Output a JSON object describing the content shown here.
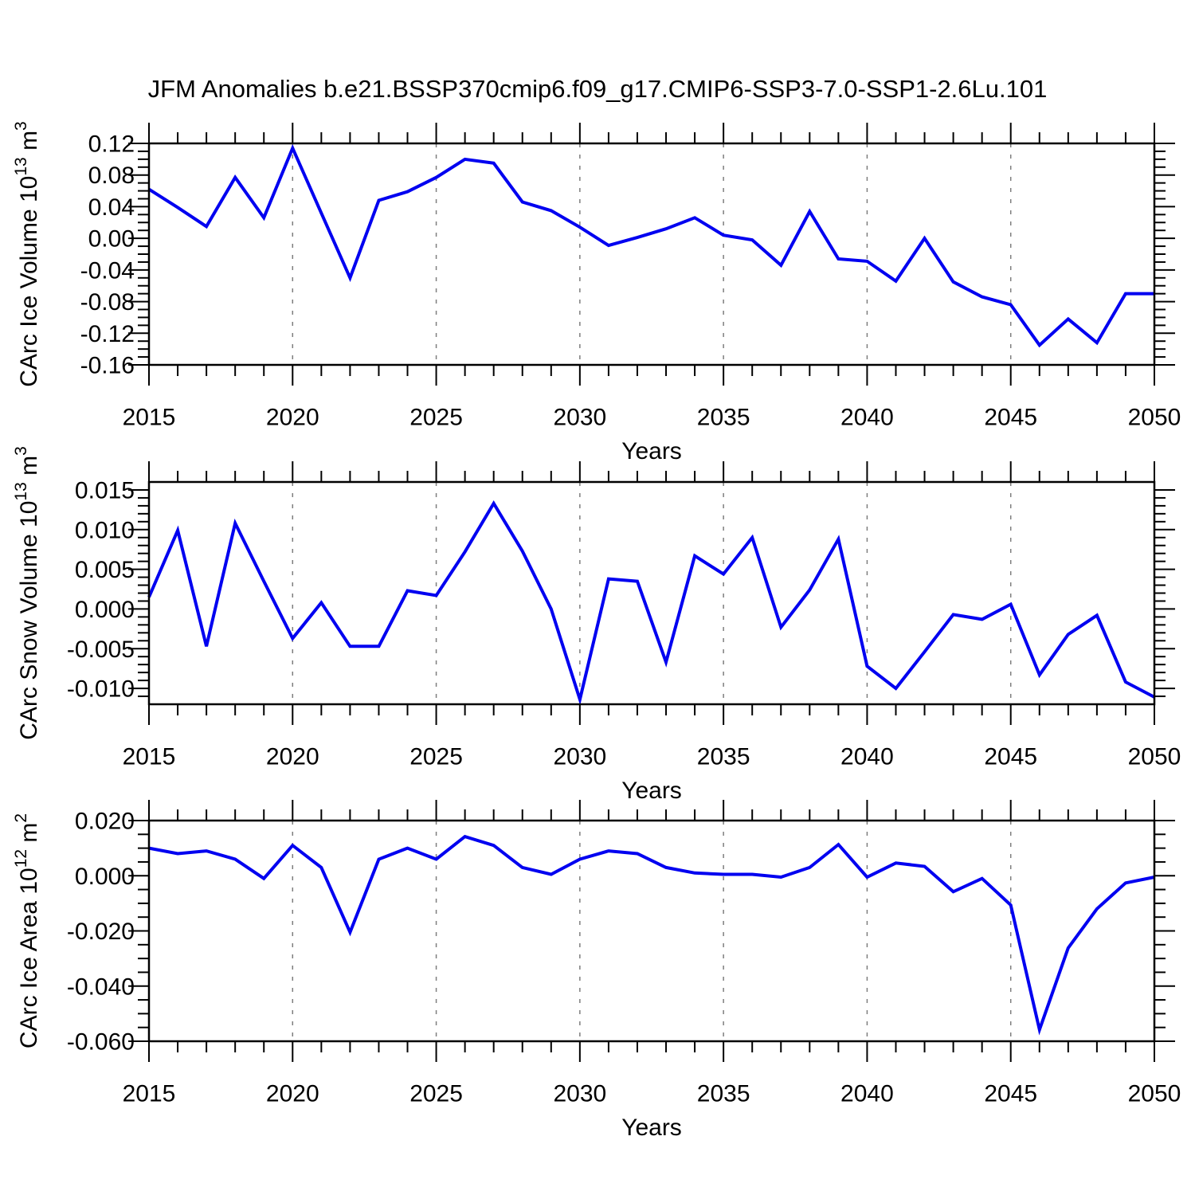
{
  "page_title": "JFM Anomalies b.e21.BSSP370cmip6.f09_g17.CMIP6-SSP3-7.0-SSP1-2.6Lu.101",
  "styles": {
    "line_color": "#0000f0",
    "grid_color": "#7e7e7e",
    "frame_color": "#000000",
    "text_color": "#000000",
    "background": "#ffffff"
  },
  "x_axis": {
    "label": "Years",
    "xlim": [
      2015,
      2050
    ],
    "major_tick_years": [
      2015,
      2020,
      2025,
      2030,
      2035,
      2040,
      2045,
      2050
    ],
    "major_tick_labels": [
      "2015",
      "2020",
      "2025",
      "2030",
      "2035",
      "2040",
      "2045",
      "2050"
    ],
    "minor_tick_step": 1,
    "gridline_years": [
      2020,
      2025,
      2030,
      2035,
      2040,
      2045
    ]
  },
  "chart_data": [
    {
      "name": "ice-volume",
      "type": "line",
      "title": "",
      "xlabel": "Years",
      "ylabel": "CArc Ice Volume 10¹³ m³",
      "ylabel_parts": [
        {
          "t": "CArc Ice Volume 10"
        },
        {
          "t": "13",
          "sup": true
        },
        {
          "t": " m"
        },
        {
          "t": "3",
          "sup": true
        }
      ],
      "ylim": [
        -0.16,
        0.12
      ],
      "ymajor_step": 0.04,
      "yminor_step": 0.01,
      "yticks": [
        {
          "v": 0.12,
          "label": "0.12"
        },
        {
          "v": 0.08,
          "label": "0.08"
        },
        {
          "v": 0.04,
          "label": "0.04"
        },
        {
          "v": 0.0,
          "label": "0.00"
        },
        {
          "v": -0.04,
          "label": "-0.04"
        },
        {
          "v": -0.08,
          "label": "-0.08"
        },
        {
          "v": -0.12,
          "label": "-0.12"
        },
        {
          "v": -0.16,
          "label": "-0.16"
        }
      ],
      "x": [
        2015,
        2016,
        2017,
        2018,
        2019,
        2020,
        2021,
        2022,
        2023,
        2024,
        2025,
        2026,
        2027,
        2028,
        2029,
        2030,
        2031,
        2032,
        2033,
        2034,
        2035,
        2036,
        2037,
        2038,
        2039,
        2040,
        2041,
        2042,
        2043,
        2044,
        2045,
        2046,
        2047,
        2048,
        2049,
        2050
      ],
      "values": [
        0.062,
        0.039,
        0.015,
        0.077,
        0.026,
        0.114,
        0.032,
        -0.05,
        0.048,
        0.059,
        0.077,
        0.1,
        0.095,
        0.046,
        0.035,
        0.014,
        -0.009,
        0.001,
        0.012,
        0.026,
        0.004,
        -0.002,
        -0.034,
        0.034,
        -0.026,
        -0.029,
        -0.054,
        0.0,
        -0.055,
        -0.074,
        -0.084,
        -0.135,
        -0.102,
        -0.132,
        -0.07,
        -0.07
      ]
    },
    {
      "name": "snow-volume",
      "type": "line",
      "title": "",
      "xlabel": "Years",
      "ylabel": "CArc Snow Volume 10¹³ m³",
      "ylabel_parts": [
        {
          "t": "CArc Snow Volume 10"
        },
        {
          "t": "13",
          "sup": true
        },
        {
          "t": " m"
        },
        {
          "t": "3",
          "sup": true
        }
      ],
      "ylim": [
        -0.012,
        0.016
      ],
      "ymajor_step": 0.005,
      "yminor_step": 0.001,
      "yticks": [
        {
          "v": 0.015,
          "label": "0.015"
        },
        {
          "v": 0.01,
          "label": "0.010"
        },
        {
          "v": 0.005,
          "label": "0.005"
        },
        {
          "v": 0.0,
          "label": "0.000"
        },
        {
          "v": -0.005,
          "label": "-0.005"
        },
        {
          "v": -0.01,
          "label": "-0.010"
        }
      ],
      "x": [
        2015,
        2016,
        2017,
        2018,
        2019,
        2020,
        2021,
        2022,
        2023,
        2024,
        2025,
        2026,
        2027,
        2028,
        2029,
        2030,
        2031,
        2032,
        2033,
        2034,
        2035,
        2036,
        2037,
        2038,
        2039,
        2040,
        2041,
        2042,
        2043,
        2044,
        2045,
        2046,
        2047,
        2048,
        2049,
        2050
      ],
      "values": [
        0.0015,
        0.0099,
        -0.0047,
        0.0108,
        0.0035,
        -0.0037,
        0.0008,
        -0.0047,
        -0.0047,
        0.0023,
        0.0017,
        0.0072,
        0.0133,
        0.0073,
        0.0,
        -0.0114,
        0.0038,
        0.0035,
        -0.0067,
        0.0067,
        0.0044,
        0.009,
        -0.0023,
        0.0024,
        0.0088,
        -0.0072,
        -0.01,
        -0.0054,
        -0.0007,
        -0.0013,
        0.0006,
        -0.0083,
        -0.0032,
        -0.0008,
        -0.0092,
        -0.0111
      ]
    },
    {
      "name": "ice-area",
      "type": "line",
      "title": "",
      "xlabel": "Years",
      "ylabel": "CArc Ice Area 10¹² m²",
      "ylabel_parts": [
        {
          "t": "CArc Ice Area 10"
        },
        {
          "t": "12",
          "sup": true
        },
        {
          "t": " m"
        },
        {
          "t": "2",
          "sup": true
        }
      ],
      "ylim": [
        -0.06,
        0.02
      ],
      "ymajor_step": 0.02,
      "yminor_step": 0.005,
      "yticks": [
        {
          "v": 0.02,
          "label": "0.020"
        },
        {
          "v": 0.0,
          "label": "0.000"
        },
        {
          "v": -0.02,
          "label": "-0.020"
        },
        {
          "v": -0.04,
          "label": "-0.040"
        },
        {
          "v": -0.06,
          "label": "-0.060"
        }
      ],
      "x": [
        2015,
        2016,
        2017,
        2018,
        2019,
        2020,
        2021,
        2022,
        2023,
        2024,
        2025,
        2026,
        2027,
        2028,
        2029,
        2030,
        2031,
        2032,
        2033,
        2034,
        2035,
        2036,
        2037,
        2038,
        2039,
        2040,
        2041,
        2042,
        2043,
        2044,
        2045,
        2046,
        2047,
        2048,
        2049,
        2050
      ],
      "values": [
        0.01,
        0.008,
        0.009,
        0.006,
        -0.001,
        0.011,
        0.003,
        -0.0205,
        0.006,
        0.01,
        0.006,
        0.0142,
        0.011,
        0.003,
        0.0005,
        0.006,
        0.009,
        0.008,
        0.003,
        0.001,
        0.0005,
        0.0005,
        -0.0005,
        0.003,
        0.0113,
        -0.0005,
        0.0046,
        0.0034,
        -0.0058,
        -0.001,
        -0.0106,
        -0.0558,
        -0.0262,
        -0.012,
        -0.0026,
        -0.0005
      ]
    }
  ]
}
